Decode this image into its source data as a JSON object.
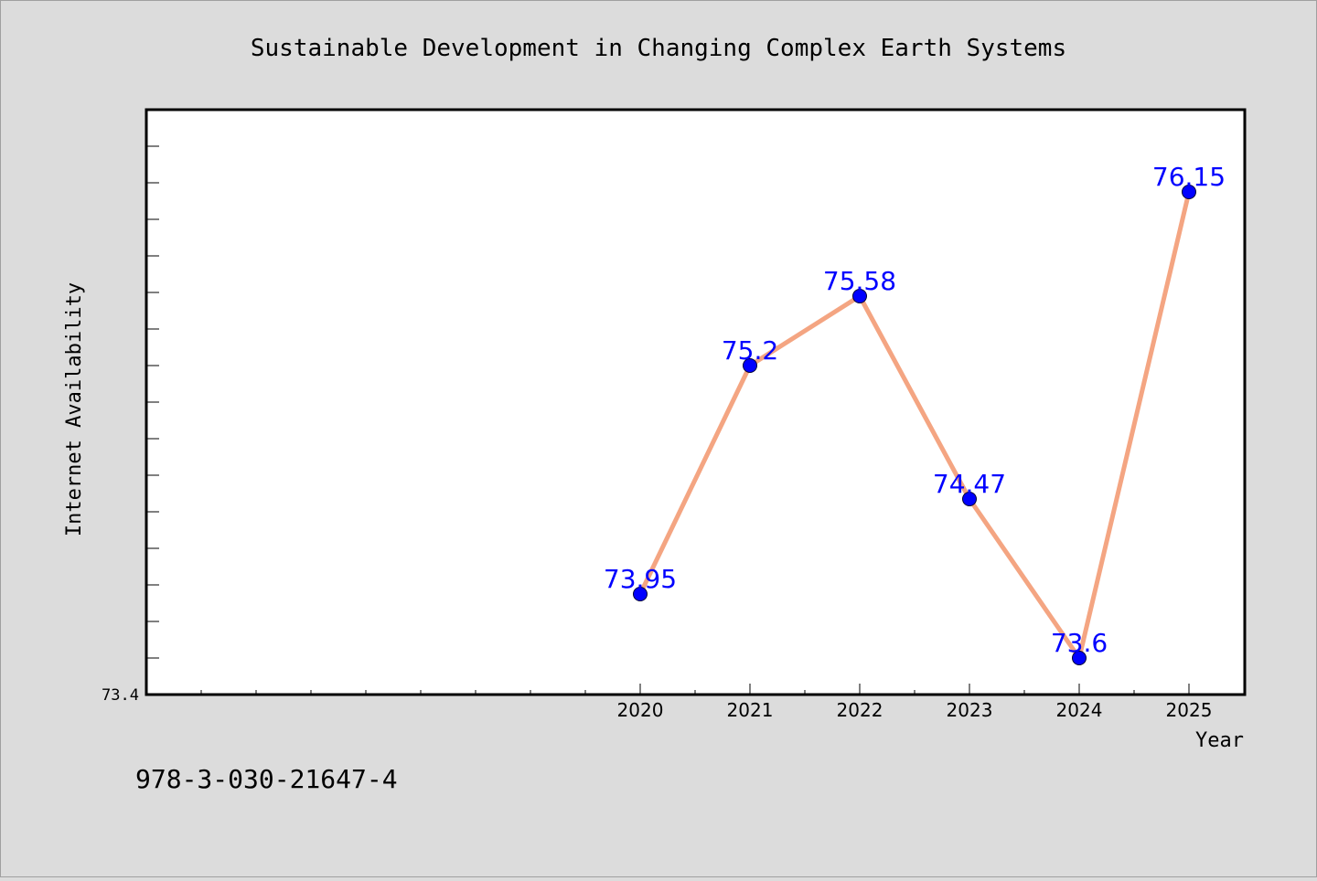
{
  "chart_data": {
    "type": "line",
    "title": "Sustainable Development in Changing Complex Earth Systems",
    "xlabel": "Year",
    "ylabel": "Internet Availability",
    "x": [
      "2020",
      "2021",
      "2022",
      "2023",
      "2024",
      "2025"
    ],
    "series": [
      {
        "values": [
          73.95,
          75.2,
          75.58,
          74.47,
          73.6,
          76.15
        ],
        "data_labels": [
          "73.95",
          "75.2",
          "75.58",
          "74.47",
          "73.6",
          "76.15"
        ]
      }
    ],
    "y_tick_labels": [
      "73.4"
    ],
    "ylim": [
      73.4,
      76.6
    ],
    "grid": false,
    "colors": {
      "line": "#f4a582",
      "marker": "#0000ff",
      "labels": "#0000ff",
      "background": "#dcdcdc",
      "plot_background": "#ffffff"
    }
  },
  "footer": {
    "isbn": "978-3-030-21647-4"
  }
}
